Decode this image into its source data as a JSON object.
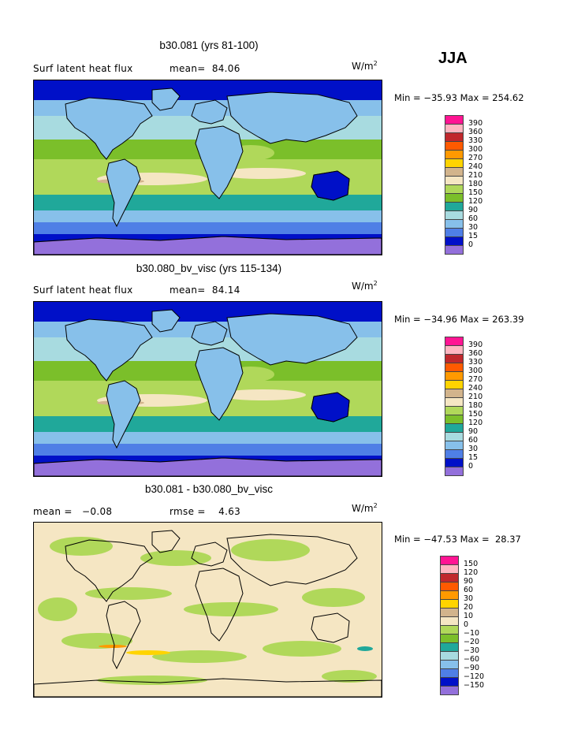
{
  "season": "JJA",
  "panels": [
    {
      "title": "b30.081 (yrs 81-100)",
      "variable_label": "Surf latent heat flux",
      "stat1": "mean=  84.06",
      "stat2": "",
      "units_base": "W/m",
      "units_exp": "2",
      "minmax": "Min = −35.93 Max = 254.62",
      "legend": {
        "labels": [
          "390",
          "360",
          "330",
          "300",
          "270",
          "240",
          "210",
          "180",
          "150",
          "120",
          "90",
          "60",
          "30",
          "15",
          "0"
        ],
        "colors": [
          "#ff1493",
          "#ffb6c1",
          "#c0282d",
          "#ff5a00",
          "#ff9900",
          "#ffd400",
          "#d2b48c",
          "#f5e6c3",
          "#b0d85a",
          "#7bbf2a",
          "#20a89a",
          "#a8dbe0",
          "#87c0ea",
          "#4f7fe6",
          "#0010c8",
          "#9370db"
        ]
      },
      "map_scheme": "abs"
    },
    {
      "title": "b30.080_bv_visc (yrs 115-134)",
      "variable_label": "Surf latent heat flux",
      "stat1": "mean=  84.14",
      "stat2": "",
      "units_base": "W/m",
      "units_exp": "2",
      "minmax": "Min = −34.96 Max = 263.39",
      "legend": {
        "labels": [
          "390",
          "360",
          "330",
          "300",
          "270",
          "240",
          "210",
          "180",
          "150",
          "120",
          "90",
          "60",
          "30",
          "15",
          "0"
        ],
        "colors": [
          "#ff1493",
          "#ffb6c1",
          "#c0282d",
          "#ff5a00",
          "#ff9900",
          "#ffd400",
          "#d2b48c",
          "#f5e6c3",
          "#b0d85a",
          "#7bbf2a",
          "#20a89a",
          "#a8dbe0",
          "#87c0ea",
          "#4f7fe6",
          "#0010c8",
          "#9370db"
        ]
      },
      "map_scheme": "abs"
    },
    {
      "title": "b30.081 - b30.080_bv_visc",
      "variable_label": "",
      "stat1": "mean =   −0.08",
      "stat2": "rmse =    4.63",
      "units_base": "W/m",
      "units_exp": "2",
      "minmax": "Min = −47.53 Max =  28.37",
      "legend": {
        "labels": [
          "150",
          "120",
          "90",
          "60",
          "30",
          "20",
          "10",
          "0",
          "−10",
          "−20",
          "−30",
          "−60",
          "−90",
          "−120",
          "−150"
        ],
        "colors": [
          "#ff1493",
          "#ffb6c1",
          "#c0282d",
          "#ff5a00",
          "#ff9900",
          "#ffd400",
          "#d2b48c",
          "#f5e6c3",
          "#b0d85a",
          "#7bbf2a",
          "#20a89a",
          "#a8dbe0",
          "#87c0ea",
          "#4f7fe6",
          "#0010c8",
          "#9370db"
        ]
      },
      "map_scheme": "diff"
    }
  ],
  "chart_data": [
    {
      "type": "heatmap",
      "title": "b30.081 (yrs 81-100)",
      "variable": "Surf latent heat flux",
      "units": "W/m^2",
      "mean": 84.06,
      "min": -35.93,
      "max": 254.62,
      "contour_levels": [
        0,
        15,
        30,
        60,
        90,
        120,
        150,
        180,
        210,
        240,
        270,
        300,
        330,
        360,
        390
      ]
    },
    {
      "type": "heatmap",
      "title": "b30.080_bv_visc (yrs 115-134)",
      "variable": "Surf latent heat flux",
      "units": "W/m^2",
      "mean": 84.14,
      "min": -34.96,
      "max": 263.39,
      "contour_levels": [
        0,
        15,
        30,
        60,
        90,
        120,
        150,
        180,
        210,
        240,
        270,
        300,
        330,
        360,
        390
      ]
    },
    {
      "type": "heatmap",
      "title": "b30.081 - b30.080_bv_visc",
      "units": "W/m^2",
      "mean": -0.08,
      "rmse": 4.63,
      "min": -47.53,
      "max": 28.37,
      "contour_levels": [
        -150,
        -120,
        -90,
        -60,
        -30,
        -20,
        -10,
        0,
        10,
        20,
        30,
        60,
        90,
        120,
        150
      ]
    }
  ]
}
